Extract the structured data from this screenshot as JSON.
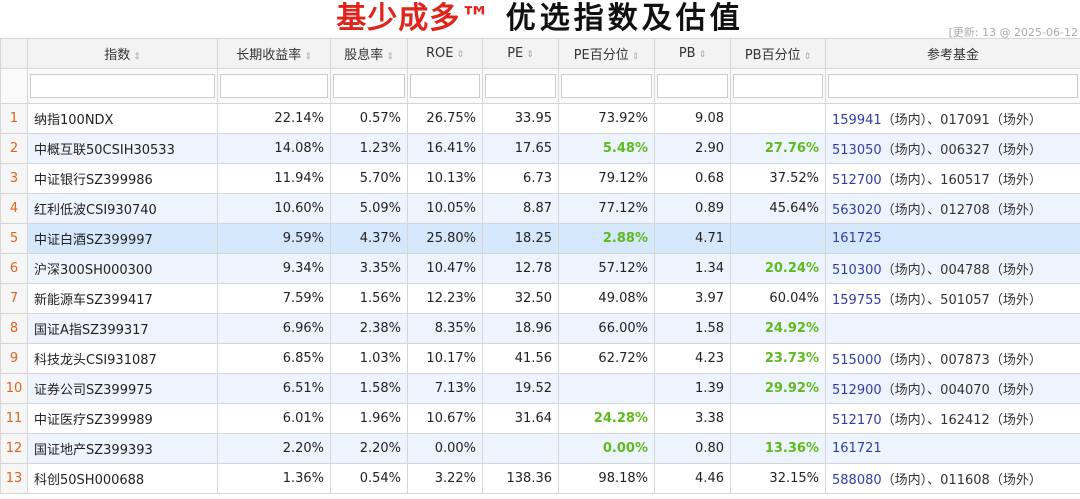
{
  "title": {
    "brand": "基少成多™",
    "rest": "优选指数及估值"
  },
  "update_text": "[更新: 13 @ 2025-06-12",
  "columns": [
    "指数",
    "长期收益率",
    "股息率",
    "ROE",
    "PE",
    "PE百分位",
    "PB",
    "PB百分位",
    "参考基金"
  ],
  "sort_icon": "⇕",
  "rows": [
    {
      "idx": "1",
      "name": "纳指100NDX",
      "ret": "22.14%",
      "div": "0.57%",
      "roe": "26.75%",
      "pe": "33.95",
      "pep": "73.92%",
      "pb": "9.08",
      "pbp": "",
      "f1": "159941",
      "t1": "（场内）",
      "sep": "、",
      "f2": "017091",
      "t2": "（场外）"
    },
    {
      "idx": "2",
      "name": "中概互联50CSIH30533",
      "ret": "14.08%",
      "div": "1.23%",
      "roe": "16.41%",
      "pe": "17.65",
      "pep": "5.48%",
      "pb": "2.90",
      "pbp": "27.76%",
      "f1": "513050",
      "t1": "（场内）",
      "sep": "、",
      "f2": "006327",
      "t2": "（场外）"
    },
    {
      "idx": "3",
      "name": "中证银行SZ399986",
      "ret": "11.94%",
      "div": "5.70%",
      "roe": "10.13%",
      "pe": "6.73",
      "pep": "79.12%",
      "pb": "0.68",
      "pbp": "37.52%",
      "f1": "512700",
      "t1": "（场内）",
      "sep": "、",
      "f2": "160517",
      "t2": "（场外）"
    },
    {
      "idx": "4",
      "name": "红利低波CSI930740",
      "ret": "10.60%",
      "div": "5.09%",
      "roe": "10.05%",
      "pe": "8.87",
      "pep": "77.12%",
      "pb": "0.89",
      "pbp": "45.64%",
      "f1": "563020",
      "t1": "（场内）",
      "sep": "、",
      "f2": "012708",
      "t2": "（场外）"
    },
    {
      "idx": "5",
      "name": "中证白酒SZ399997",
      "ret": "9.59%",
      "div": "4.37%",
      "roe": "25.80%",
      "pe": "18.25",
      "pep": "2.88%",
      "pb": "4.71",
      "pbp": "",
      "f1": "161725",
      "t1": "",
      "sep": "",
      "f2": "",
      "t2": ""
    },
    {
      "idx": "6",
      "name": "沪深300SH000300",
      "ret": "9.34%",
      "div": "3.35%",
      "roe": "10.47%",
      "pe": "12.78",
      "pep": "57.12%",
      "pb": "1.34",
      "pbp": "20.24%",
      "f1": "510300",
      "t1": "（场内）",
      "sep": "、",
      "f2": "004788",
      "t2": "（场外）"
    },
    {
      "idx": "7",
      "name": "新能源车SZ399417",
      "ret": "7.59%",
      "div": "1.56%",
      "roe": "12.23%",
      "pe": "32.50",
      "pep": "49.08%",
      "pb": "3.97",
      "pbp": "60.04%",
      "f1": "159755",
      "t1": "（场内）",
      "sep": "、",
      "f2": "501057",
      "t2": "（场外）"
    },
    {
      "idx": "8",
      "name": "国证A指SZ399317",
      "ret": "6.96%",
      "div": "2.38%",
      "roe": "8.35%",
      "pe": "18.96",
      "pep": "66.00%",
      "pb": "1.58",
      "pbp": "24.92%",
      "f1": "",
      "t1": "",
      "sep": "",
      "f2": "",
      "t2": ""
    },
    {
      "idx": "9",
      "name": "科技龙头CSI931087",
      "ret": "6.85%",
      "div": "1.03%",
      "roe": "10.17%",
      "pe": "41.56",
      "pep": "62.72%",
      "pb": "4.23",
      "pbp": "23.73%",
      "f1": "515000",
      "t1": "（场内）",
      "sep": "、",
      "f2": "007873",
      "t2": "（场外）"
    },
    {
      "idx": "10",
      "name": "证券公司SZ399975",
      "ret": "6.51%",
      "div": "1.58%",
      "roe": "7.13%",
      "pe": "19.52",
      "pep": "",
      "pb": "1.39",
      "pbp": "29.92%",
      "f1": "512900",
      "t1": "（场内）",
      "sep": "、",
      "f2": "004070",
      "t2": "（场外）"
    },
    {
      "idx": "11",
      "name": "中证医疗SZ399989",
      "ret": "6.01%",
      "div": "1.96%",
      "roe": "10.67%",
      "pe": "31.64",
      "pep": "24.28%",
      "pb": "3.38",
      "pbp": "",
      "f1": "512170",
      "t1": "（场内）",
      "sep": "、",
      "f2": "162412",
      "t2": "（场外）"
    },
    {
      "idx": "12",
      "name": "国证地产SZ399393",
      "ret": "2.20%",
      "div": "2.20%",
      "roe": "0.00%",
      "pe": "",
      "pep": "0.00%",
      "pb": "0.80",
      "pbp": "13.36%",
      "f1": "161721",
      "t1": "",
      "sep": "",
      "f2": "",
      "t2": ""
    },
    {
      "idx": "13",
      "name": "科创50SH000688",
      "ret": "1.36%",
      "div": "0.54%",
      "roe": "3.22%",
      "pe": "138.36",
      "pep": "98.18%",
      "pb": "4.46",
      "pbp": "32.15%",
      "f1": "588080",
      "t1": "（场内）",
      "sep": "、",
      "f2": "011608",
      "t2": "（场外）"
    }
  ],
  "highlight": {
    "pep": [
      "5.48%",
      "2.88%",
      "24.28%",
      "0.00%"
    ],
    "pbp": [
      "27.76%",
      "20.24%",
      "24.92%",
      "23.73%",
      "29.92%",
      "13.36%"
    ]
  },
  "selected_row": "5",
  "colors": {
    "brand_red": "#e0241b",
    "green": "#5dbb1d",
    "fund_blue": "#2f3fa8",
    "row_alt": "#eef4fd",
    "row_selected": "#d5e7fa"
  }
}
